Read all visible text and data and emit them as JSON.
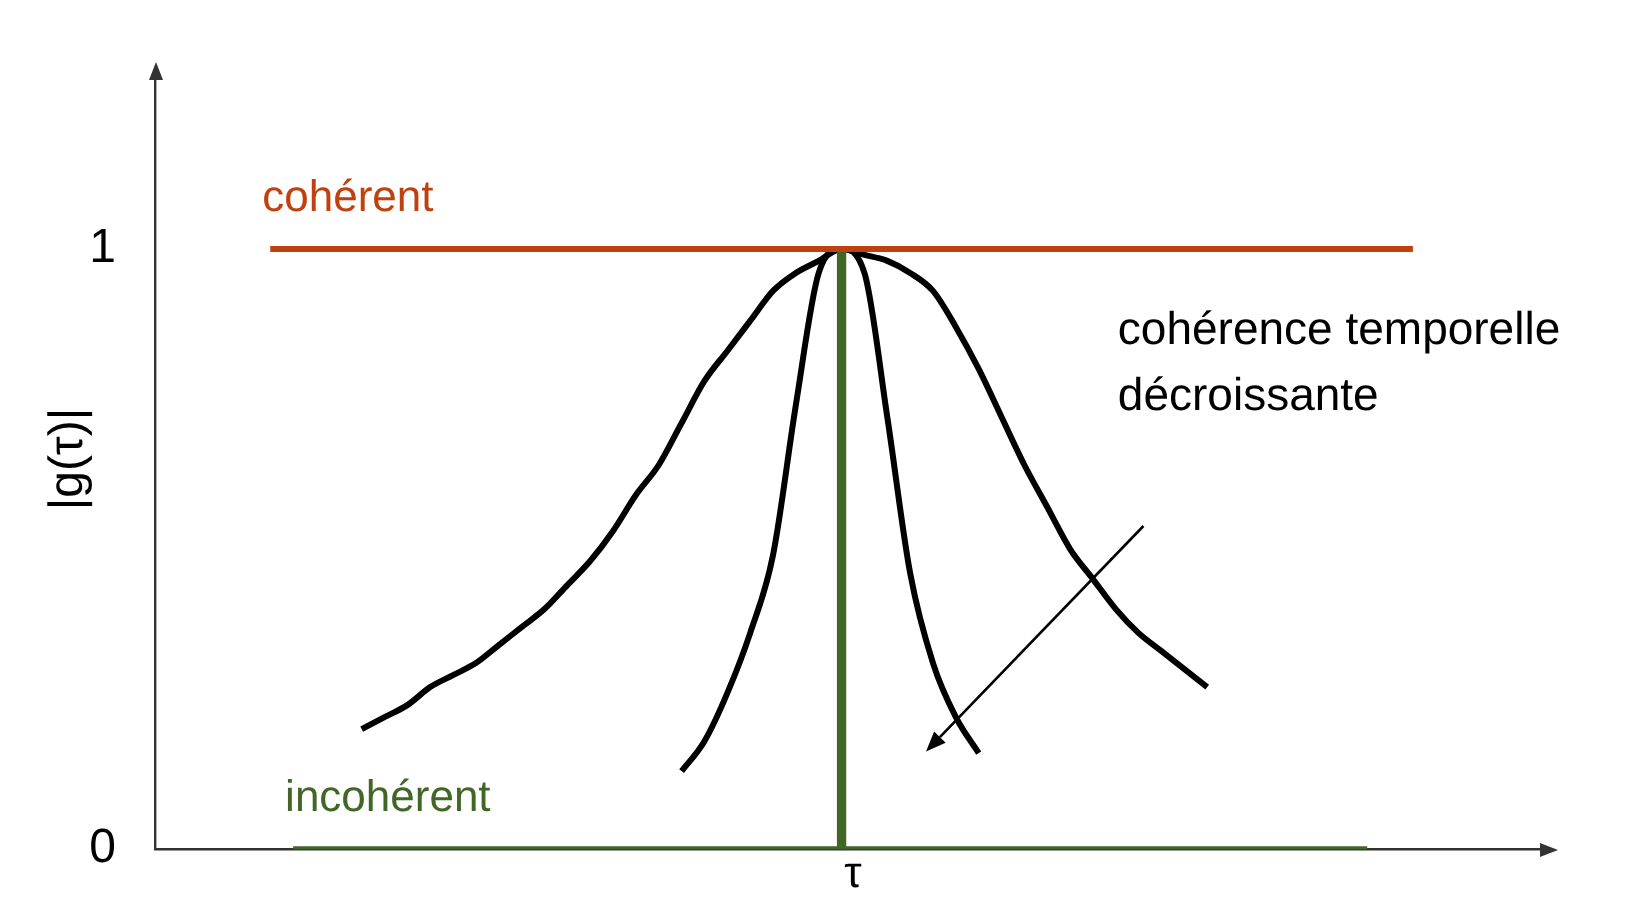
{
  "chart_data": {
    "type": "line",
    "xlabel": "τ",
    "ylabel": "|g(τ)|",
    "categories": [
      null,
      null,
      null,
      null,
      null,
      null,
      null,
      null,
      null,
      null,
      null,
      null,
      null,
      null,
      null,
      null,
      null,
      null,
      null,
      null,
      null,
      null,
      null,
      null,
      null,
      null,
      null,
      null,
      null,
      null,
      null,
      null,
      null,
      null,
      null,
      null,
      null,
      null,
      null,
      null,
      null,
      null,
      null,
      null,
      null,
      null,
      null,
      null,
      null,
      null,
      null,
      null,
      null,
      null,
      null,
      null,
      null,
      null,
      null,
      null,
      null,
      null
    ],
    "ylim": [
      0,
      1.3
    ],
    "yticks": [
      0,
      1
    ],
    "tick_labels": "y",
    "marker": "none",
    "line_style": "solid",
    "annotations": [
      "cohérence temporelle décroissante"
    ],
    "series": [
      {
        "name": "cohérent",
        "color": "#c0410f",
        "values": [
          null,
          null,
          null,
          null,
          null,
          1,
          1,
          1,
          1,
          1,
          1,
          1,
          1,
          1,
          1,
          1,
          1,
          1,
          1,
          1,
          1,
          1,
          1,
          1,
          1,
          1,
          1,
          1,
          1,
          1,
          1,
          1,
          1,
          1,
          1,
          1,
          1,
          1,
          1,
          1,
          1,
          1,
          1,
          1,
          1,
          1,
          1,
          1,
          1,
          1,
          1,
          1,
          1,
          1,
          1,
          1,
          null,
          null,
          null,
          null,
          null,
          null
        ]
      },
      {
        "name": "incohérent",
        "color": "#416727",
        "values": [
          null,
          null,
          null,
          null,
          null,
          null,
          0,
          0,
          0,
          0,
          0,
          0,
          0,
          0,
          0,
          0,
          0,
          0,
          0,
          0,
          0,
          0,
          0,
          0,
          0,
          0,
          0,
          0,
          0,
          0,
          0,
          0,
          0,
          0,
          0,
          0,
          0,
          0,
          0,
          0,
          0,
          0,
          0,
          0,
          0,
          0,
          0,
          0,
          0,
          0,
          0,
          0,
          0,
          0,
          null,
          null,
          null,
          null,
          null,
          null,
          null,
          null
        ]
      },
      {
        "type": "bar",
        "color": "#416727",
        "values": [
          null,
          null,
          null,
          null,
          null,
          null,
          null,
          null,
          null,
          null,
          null,
          null,
          null,
          null,
          null,
          null,
          null,
          null,
          null,
          null,
          null,
          null,
          null,
          null,
          null,
          null,
          null,
          null,
          null,
          null,
          1,
          null,
          null,
          null,
          null,
          null,
          null,
          null,
          null,
          null,
          null,
          null,
          null,
          null,
          null,
          null,
          null,
          null,
          null,
          null,
          null,
          null,
          null,
          null,
          null,
          null,
          null,
          null,
          null,
          null,
          null,
          null
        ]
      },
      {
        "color": "#000000",
        "values": [
          null,
          null,
          null,
          null,
          null,
          null,
          null,
          null,
          null,
          0.2,
          0.22,
          0.24,
          0.27,
          0.29,
          0.31,
          0.34,
          0.37,
          0.4,
          0.44,
          0.48,
          0.53,
          0.59,
          0.64,
          0.71,
          0.78,
          0.83,
          0.88,
          0.93,
          0.96,
          0.98,
          1,
          0.99,
          0.98,
          0.96,
          0.93,
          0.87,
          0.8,
          0.72,
          0.64,
          0.57,
          0.5,
          0.45,
          0.4,
          0.36,
          0.33,
          0.3,
          0.27,
          null,
          null,
          null,
          null,
          null,
          null,
          null,
          null,
          null,
          null,
          null,
          null,
          null,
          null,
          null
        ]
      },
      {
        "color": "#000000",
        "values": [
          null,
          null,
          null,
          null,
          null,
          null,
          null,
          null,
          null,
          null,
          null,
          null,
          null,
          null,
          null,
          null,
          null,
          null,
          null,
          null,
          null,
          null,
          null,
          0.13,
          0.18,
          0.26,
          0.36,
          0.49,
          0.74,
          0.96,
          1,
          0.96,
          0.72,
          0.46,
          0.31,
          0.22,
          0.16,
          null,
          null,
          null,
          null,
          null,
          null,
          null,
          null,
          null,
          null,
          null,
          null,
          null,
          null,
          null,
          null,
          null,
          null,
          null,
          null,
          null,
          null,
          null,
          null,
          null
        ]
      }
    ]
  }
}
